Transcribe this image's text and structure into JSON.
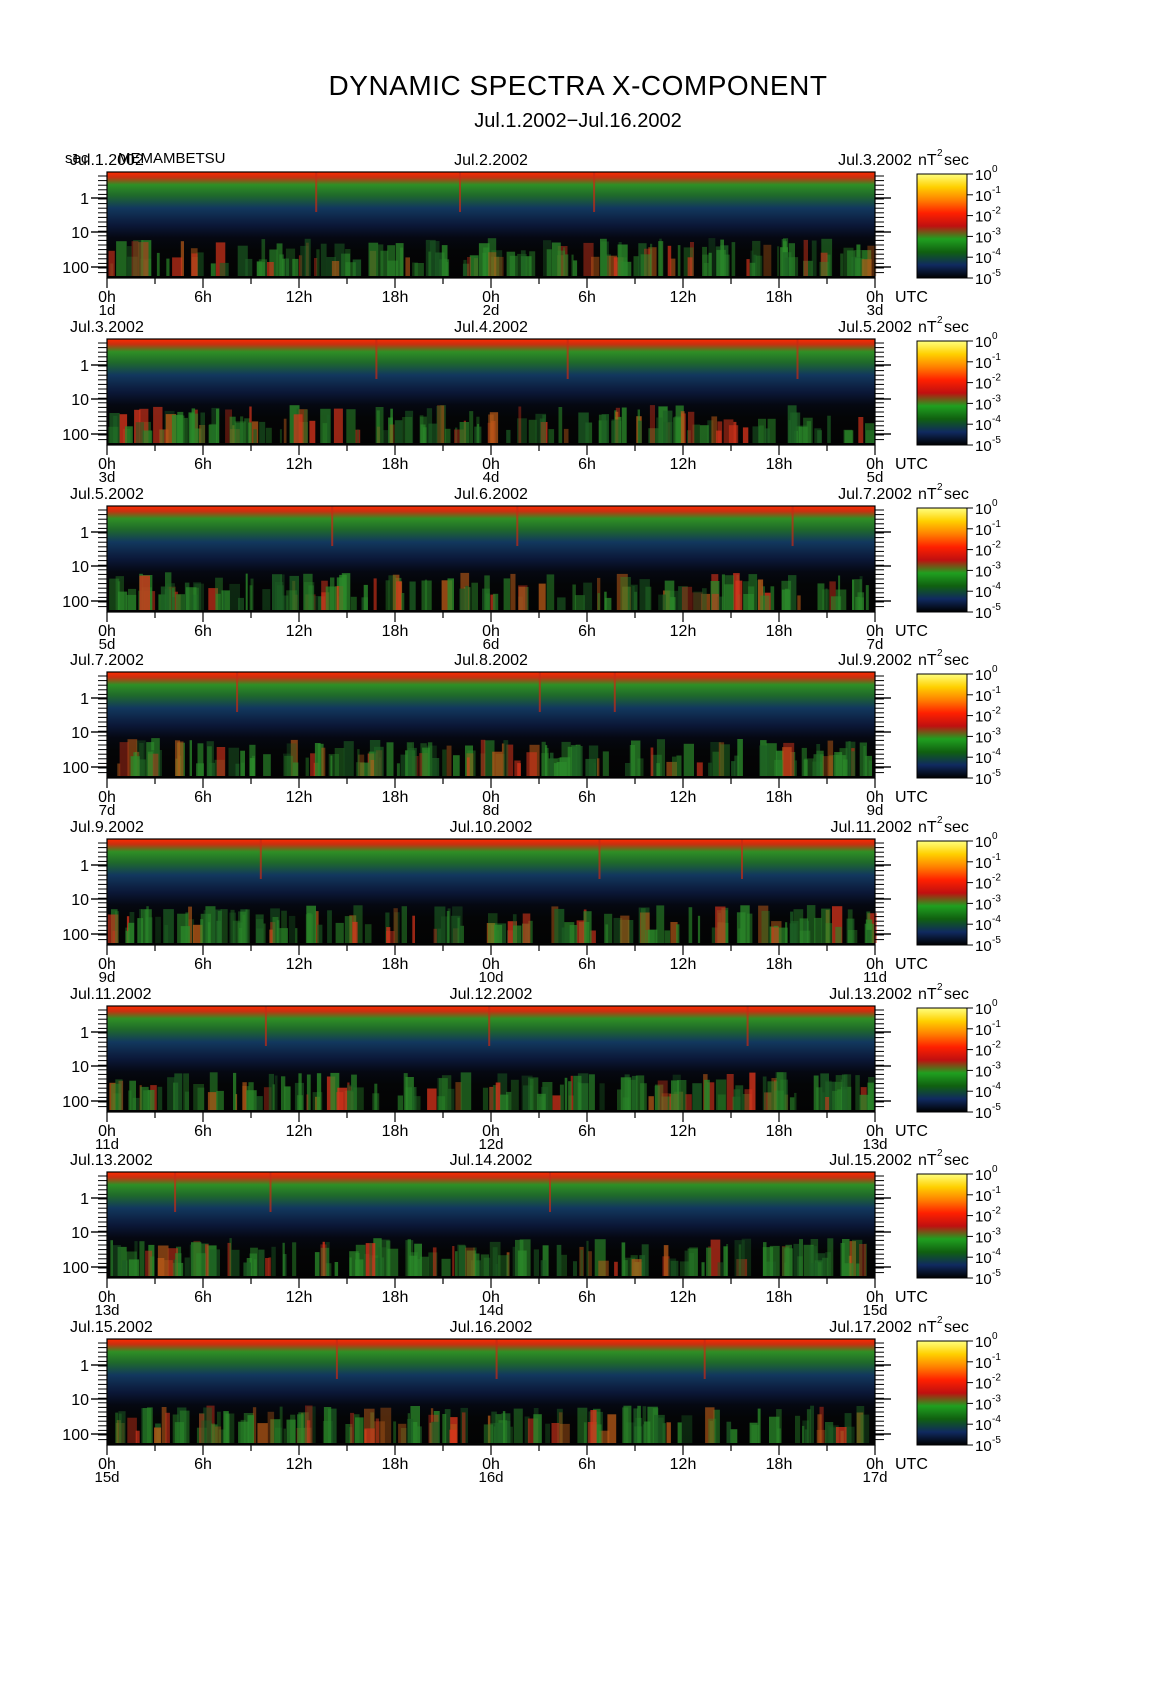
{
  "chart_data": {
    "type": "heatmap",
    "title": "DYNAMIC SPECTRA X-COMPONENT",
    "subtitle": "Jul.1.2002−Jul.16.2002",
    "station": "MEMAMBETSU",
    "y_axis_label": "sec",
    "y_scale": "log",
    "y_ticks": [
      "1",
      "10",
      "100"
    ],
    "x_ticks": [
      "0h",
      "6h",
      "12h",
      "18h",
      "0h",
      "6h",
      "12h",
      "18h",
      "0h"
    ],
    "x_unit": "UTC",
    "colorbar": {
      "unit_base": "nT",
      "unit_exp": "2",
      "unit_tail": "sec",
      "tick_base": "10",
      "tick_exps": [
        "0",
        "-1",
        "-2",
        "-3",
        "-4",
        "-5"
      ],
      "colors": [
        "#ffff80",
        "#ffd000",
        "#ff8000",
        "#ff2000",
        "#c01010",
        "#20a020",
        "#106010",
        "#102a60",
        "#000000"
      ]
    },
    "panels": [
      {
        "date_left": "Jul.1.2002",
        "date_mid": "Jul.2.2002",
        "date_right": "Jul.3.2002",
        "day_left": "1d",
        "day_mid": "2d",
        "day_right": "3d"
      },
      {
        "date_left": "Jul.3.2002",
        "date_mid": "Jul.4.2002",
        "date_right": "Jul.5.2002",
        "day_left": "3d",
        "day_mid": "4d",
        "day_right": "5d"
      },
      {
        "date_left": "Jul.5.2002",
        "date_mid": "Jul.6.2002",
        "date_right": "Jul.7.2002",
        "day_left": "5d",
        "day_mid": "6d",
        "day_right": "7d"
      },
      {
        "date_left": "Jul.7.2002",
        "date_mid": "Jul.8.2002",
        "date_right": "Jul.9.2002",
        "day_left": "7d",
        "day_mid": "8d",
        "day_right": "9d"
      },
      {
        "date_left": "Jul.9.2002",
        "date_mid": "Jul.10.2002",
        "date_right": "Jul.11.2002",
        "day_left": "9d",
        "day_mid": "10d",
        "day_right": "11d"
      },
      {
        "date_left": "Jul.11.2002",
        "date_mid": "Jul.12.2002",
        "date_right": "Jul.13.2002",
        "day_left": "11d",
        "day_mid": "12d",
        "day_right": "13d"
      },
      {
        "date_left": "Jul.13.2002",
        "date_mid": "Jul.14.2002",
        "date_right": "Jul.15.2002",
        "day_left": "13d",
        "day_mid": "14d",
        "day_right": "15d"
      },
      {
        "date_left": "Jul.15.2002",
        "date_mid": "Jul.16.2002",
        "date_right": "Jul.17.2002",
        "day_left": "15d",
        "day_mid": "16d",
        "day_right": "17d"
      }
    ]
  }
}
